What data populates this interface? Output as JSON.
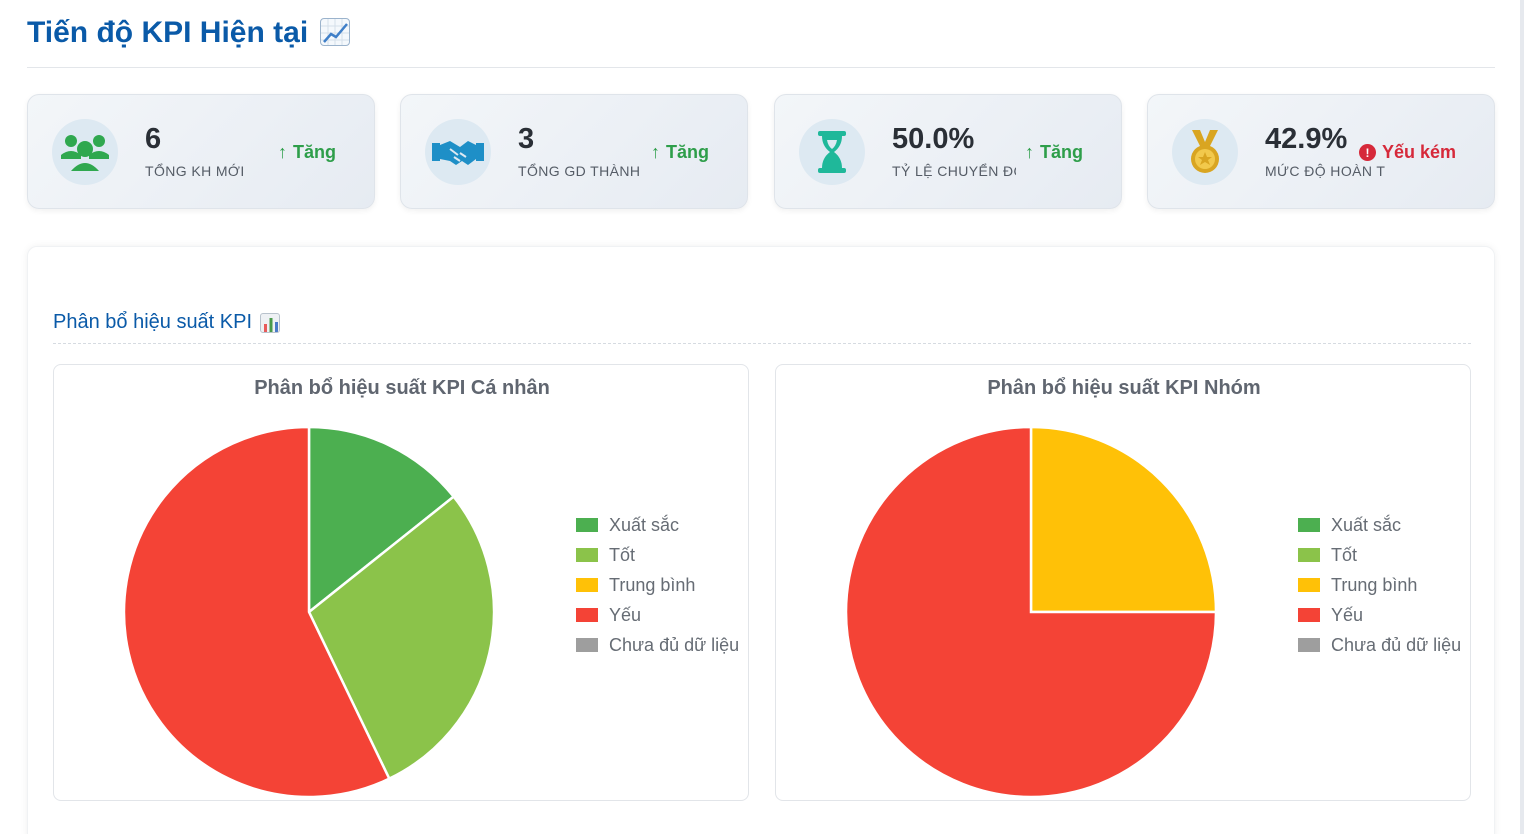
{
  "header": {
    "title": "Tiến độ KPI Hiện tại"
  },
  "cards": [
    {
      "value": "6",
      "label": "TỔNG KH MỚI",
      "trend": "Tăng",
      "trend_type": "up",
      "icon": "users-icon",
      "icon_color": "#2fa84f"
    },
    {
      "value": "3",
      "label": "TỔNG GD THÀNH C",
      "trend": "Tăng",
      "trend_type": "up",
      "icon": "handshake-icon",
      "icon_color": "#1e8fc7"
    },
    {
      "value": "50.0%",
      "label": "TỶ LỆ CHUYỂN ĐỔI",
      "trend": "Tăng",
      "trend_type": "up",
      "icon": "hourglass-icon",
      "icon_color": "#1fb89a"
    },
    {
      "value": "42.9%",
      "label": "MỨC ĐỘ HOÀN T",
      "trend": "Yếu kém",
      "trend_type": "bad",
      "icon": "medal-icon",
      "icon_color": "#d9a521"
    }
  ],
  "panel": {
    "title": "Phân bổ hiệu suất KPI"
  },
  "legend": [
    {
      "label": "Xuất sắc",
      "color": "#4caf50"
    },
    {
      "label": "Tốt",
      "color": "#8bc34a"
    },
    {
      "label": "Trung bình",
      "color": "#ffc107"
    },
    {
      "label": "Yếu",
      "color": "#f44336"
    },
    {
      "label": "Chưa đủ dữ liệu",
      "color": "#9e9e9e"
    }
  ],
  "chart_data": [
    {
      "type": "pie",
      "title": "Phân bổ hiệu suất KPI Cá nhân",
      "categories": [
        "Xuất sắc",
        "Tốt",
        "Trung bình",
        "Yếu",
        "Chưa đủ dữ liệu"
      ],
      "values": [
        1,
        2,
        0,
        4,
        0
      ],
      "colors": [
        "#4caf50",
        "#8bc34a",
        "#ffc107",
        "#f44336",
        "#9e9e9e"
      ],
      "legend": "right"
    },
    {
      "type": "pie",
      "title": "Phân bổ hiệu suất KPI Nhóm",
      "categories": [
        "Xuất sắc",
        "Tốt",
        "Trung bình",
        "Yếu",
        "Chưa đủ dữ liệu"
      ],
      "values": [
        0,
        0,
        1,
        3,
        0
      ],
      "colors": [
        "#4caf50",
        "#8bc34a",
        "#ffc107",
        "#f44336",
        "#9e9e9e"
      ],
      "legend": "right"
    }
  ]
}
